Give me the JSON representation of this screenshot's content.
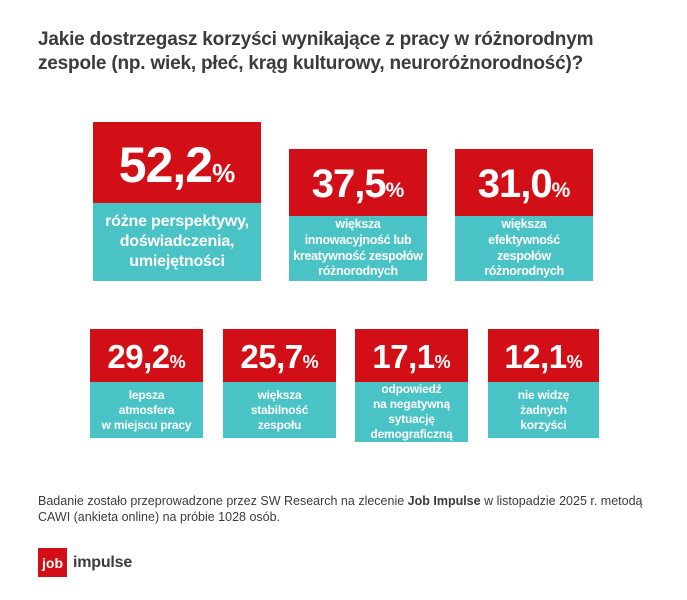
{
  "title": "Jakie dostrzegasz korzyści wynikające z pracy w różnorodnym\nzespole (np. wiek, płeć, krąg kulturowy, neuroróżnorodność)?",
  "tiles": [
    {
      "value": "52,2",
      "unit": "%",
      "label": "różne perspektywy,\ndoświadczenia,\numiejętności"
    },
    {
      "value": "37,5",
      "unit": "%",
      "label": "większa\ninnowacyjność lub\nkreatywność zespołów\nróżnorodnych"
    },
    {
      "value": "31,0",
      "unit": "%",
      "label": "większa\nefektywność\nzespołów\nróżnorodnych"
    },
    {
      "value": "29,2",
      "unit": "%",
      "label": "lepsza\natmosfera\nw miejscu pracy"
    },
    {
      "value": "25,7",
      "unit": "%",
      "label": "większa\nstabilność\nzespołu"
    },
    {
      "value": "17,1",
      "unit": "%",
      "label": "odpowiedź\nna negatywną\nsytuację\ndemograficzną"
    },
    {
      "value": "12,1",
      "unit": "%",
      "label": "nie widzę\nżadnych\nkorzyści"
    }
  ],
  "footer": {
    "prefix": "Badanie zostało przeprowadzone przez SW Research na zlecenie ",
    "brand": "Job Impulse",
    "line1_suffix": " w listopadzie 2025 r. metodą",
    "line2": "CAWI (ankieta online) na próbie 1028 osób."
  },
  "logo": {
    "box_text": "job",
    "brand_text": "impulse"
  },
  "colors": {
    "red": "#d20f16",
    "teal": "#4ac3c7",
    "text_dark": "#3b3b3b",
    "white": "#ffffff"
  },
  "chart_data": {
    "type": "bar",
    "title": "Jakie dostrzegasz korzyści wynikające z pracy w różnorodnym zespole (np. wiek, płeć, krąg kulturowy, neuroróżnorodność)?",
    "categories": [
      "różne perspektywy, doświadczenia, umiejętności",
      "większa innowacyjność lub kreatywność zespołów różnorodnych",
      "większa efektywność zespołów różnorodnych",
      "lepsza atmosfera w miejscu pracy",
      "większa stabilność zespołu",
      "odpowiedź na negatywną sytuację demograficzną",
      "nie widzę żadnych korzyści"
    ],
    "values": [
      52.2,
      37.5,
      31.0,
      29.2,
      25.7,
      17.1,
      12.1
    ],
    "value_labels": [
      "52,2%",
      "37,5%",
      "31,0%",
      "29,2%",
      "25,7%",
      "17,1%",
      "12,1%"
    ],
    "unit": "%",
    "xlabel": "",
    "ylabel": "",
    "legend": null,
    "layout": "tile grid: 3 tiles top row (first emphasized larger), 4 tiles bottom row; red value panel above teal label panel",
    "source_note": "Badanie zostało przeprowadzone przez SW Research na zlecenie Job Impulse w listopadzie 2025 r. metodą CAWI (ankieta online) na próbie 1028 osób."
  }
}
